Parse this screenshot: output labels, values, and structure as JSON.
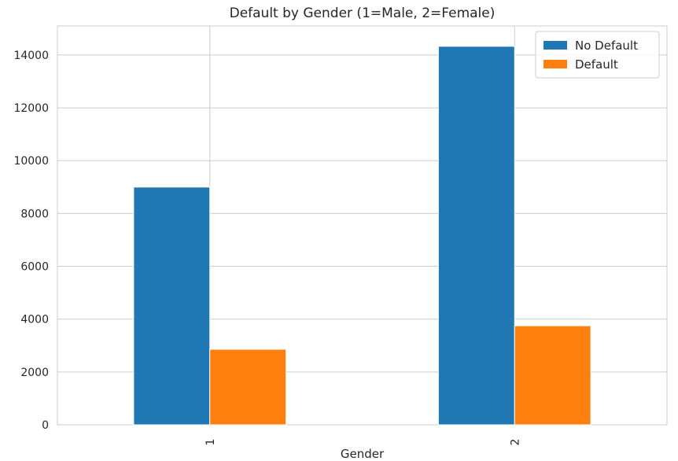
{
  "chart_data": {
    "type": "bar",
    "title": "Default by Gender (1=Male, 2=Female)",
    "xlabel": "Gender",
    "ylabel": "",
    "categories": [
      "1",
      "2"
    ],
    "series": [
      {
        "name": "No Default",
        "values": [
          9000,
          14330
        ],
        "color": "#1f77b4"
      },
      {
        "name": "Default",
        "values": [
          2860,
          3750
        ],
        "color": "#ff7f0e"
      }
    ],
    "ylim": [
      0,
      15100
    ],
    "yticks": [
      0,
      2000,
      4000,
      6000,
      8000,
      10000,
      12000,
      14000
    ],
    "grid": true,
    "legend_position": "top-right"
  }
}
